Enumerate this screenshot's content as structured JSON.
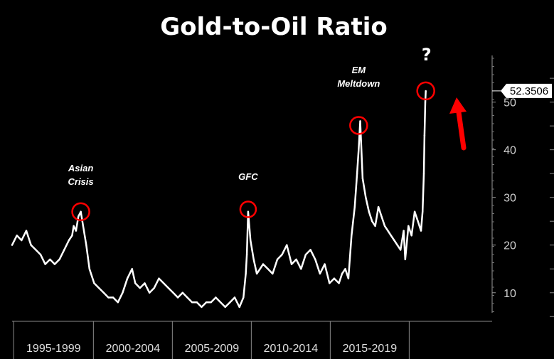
{
  "chart_data": {
    "type": "line",
    "title": "Gold-to-Oil Ratio",
    "xlabel": "",
    "ylabel": "",
    "ylim": [
      4,
      58
    ],
    "xlim": [
      1994.1,
      2020.9
    ],
    "y_ticks": [
      10,
      20,
      30,
      40,
      50
    ],
    "categories": [
      "1995-1999",
      "2000-2004",
      "2005-2009",
      "2010-2014",
      "2015-2019"
    ],
    "grid": false,
    "legend": "none",
    "last_value_label": "52.3506",
    "series": [
      {
        "name": "",
        "color": "#ffffff",
        "x": [
          1994.1,
          1994.4,
          1994.7,
          1995.0,
          1995.3,
          1995.6,
          1995.9,
          1996.2,
          1996.5,
          1996.8,
          1997.1,
          1997.4,
          1997.7,
          1997.9,
          1998.0,
          1998.15,
          1998.3,
          1998.45,
          1998.6,
          1998.8,
          1999.0,
          1999.3,
          1999.6,
          1999.9,
          2000.2,
          2000.5,
          2000.8,
          2001.1,
          2001.4,
          2001.7,
          2001.9,
          2002.2,
          2002.5,
          2002.8,
          2003.1,
          2003.4,
          2003.7,
          2004.0,
          2004.3,
          2004.6,
          2004.9,
          2005.2,
          2005.5,
          2005.8,
          2006.1,
          2006.4,
          2006.7,
          2007.0,
          2007.3,
          2007.6,
          2007.9,
          2008.2,
          2008.5,
          2008.75,
          2008.9,
          2008.97,
          2009.05,
          2009.2,
          2009.4,
          2009.6,
          2009.8,
          2010.0,
          2010.3,
          2010.6,
          2010.9,
          2011.2,
          2011.5,
          2011.8,
          2012.1,
          2012.4,
          2012.7,
          2013.0,
          2013.3,
          2013.6,
          2013.9,
          2014.2,
          2014.5,
          2014.8,
          2015.0,
          2015.2,
          2015.4,
          2015.6,
          2015.8,
          2015.95,
          2016.05,
          2016.15,
          2016.3,
          2016.5,
          2016.7,
          2016.9,
          2017.1,
          2017.3,
          2017.5,
          2017.7,
          2017.9,
          2018.1,
          2018.3,
          2018.5,
          2018.7,
          2018.9,
          2019.0,
          2019.2,
          2019.4,
          2019.6,
          2019.8,
          2020.0,
          2020.1,
          2020.18,
          2020.22,
          2020.27,
          2020.3
        ],
        "values": [
          20,
          22,
          21,
          23,
          20,
          19,
          18,
          16,
          17,
          16,
          17,
          19,
          21,
          22,
          24,
          23,
          26,
          27,
          24,
          20,
          15,
          12,
          11,
          10,
          9,
          9,
          8,
          10,
          13,
          15,
          12,
          11,
          12,
          10,
          11,
          13,
          12,
          11,
          10,
          9,
          10,
          9,
          8,
          8,
          7,
          8,
          8,
          9,
          8,
          7,
          8,
          9,
          7,
          9,
          14,
          18,
          27,
          21,
          17,
          14,
          15,
          16,
          15,
          14,
          17,
          18,
          20,
          16,
          17,
          15,
          18,
          19,
          17,
          14,
          16,
          12,
          13,
          12,
          14,
          15,
          13,
          22,
          28,
          35,
          40,
          46,
          34,
          30,
          27,
          25,
          24,
          28,
          26,
          24,
          23,
          22,
          21,
          20,
          19,
          23,
          17,
          24,
          22,
          27,
          25,
          23,
          27,
          35,
          43,
          50,
          52.35
        ]
      }
    ],
    "annotations": [
      {
        "text_lines": [
          "Asian",
          "Crisis"
        ],
        "x": 1998.45,
        "y": 27
      },
      {
        "text_lines": [
          "GFC"
        ],
        "x": 2009.05,
        "y": 27.5
      },
      {
        "text_lines": [
          "EM",
          "Meltdown"
        ],
        "x": 2016.05,
        "y": 46
      },
      {
        "text_lines": [
          "?"
        ],
        "x": 2020.3,
        "y": 52.35
      }
    ],
    "arrow_color": "#ff0000",
    "circle_color": "#ff0000"
  }
}
